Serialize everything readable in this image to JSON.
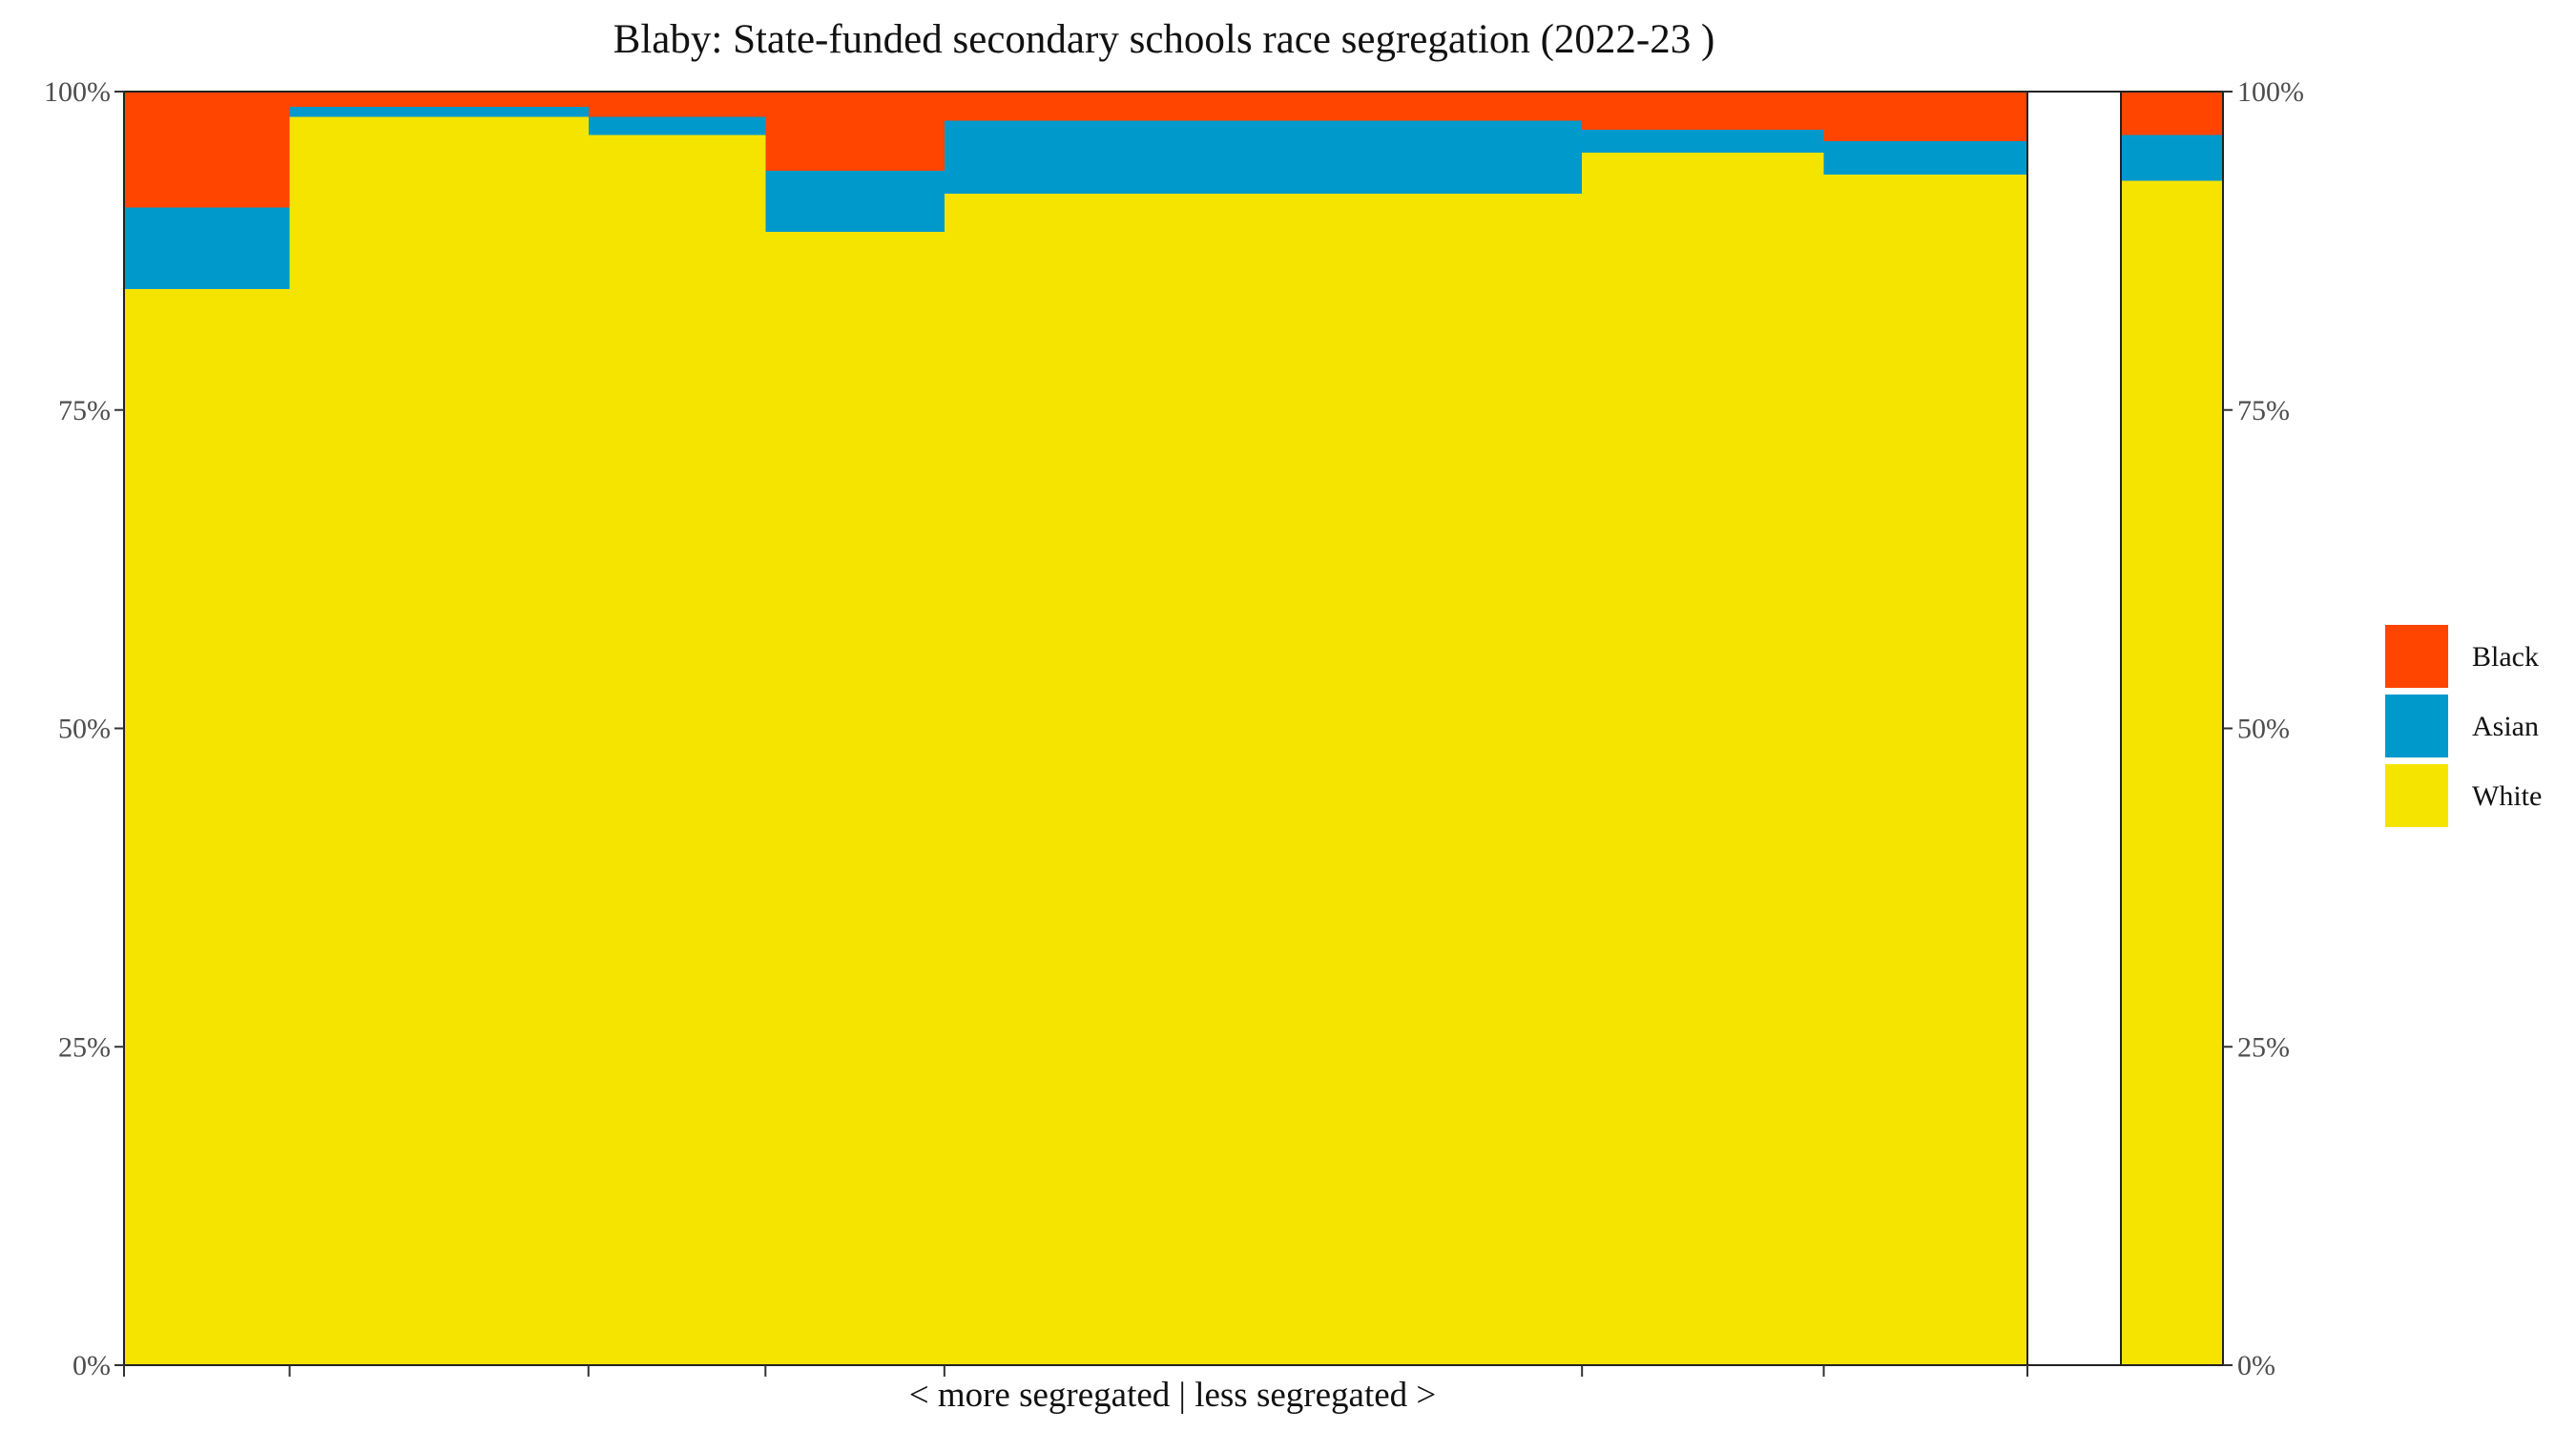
{
  "chart_data": {
    "type": "bar",
    "subtype": "stacked-variable-width",
    "title": "Blaby: State-funded secondary schools race segregation (2022-23 )",
    "xlabel": "< more segregated | less segregated >",
    "ylabel": "",
    "ylim": [
      0,
      100
    ],
    "y_ticks": [
      "0%",
      "25%",
      "50%",
      "75%",
      "100%"
    ],
    "y_tick_values": [
      0,
      25,
      50,
      75,
      100
    ],
    "secondary_y_axis": true,
    "grid": false,
    "legend_position": "right",
    "colors": {
      "Black": "#FF4500",
      "Asian": "#0099CC",
      "White": "#F5E400"
    },
    "legend": [
      "Black",
      "Asian",
      "White"
    ],
    "series_order_bottom_to_top": [
      "White",
      "Asian",
      "Black"
    ],
    "cumulative_share_domain": [
      0,
      100
    ],
    "schools": [
      {
        "cum_start": 0.0,
        "cum_end": 8.7,
        "White": 84.5,
        "Asian": 6.4,
        "Black": 9.1
      },
      {
        "cum_start": 8.7,
        "cum_end": 24.4,
        "White": 98.0,
        "Asian": 0.8,
        "Black": 1.2
      },
      {
        "cum_start": 24.4,
        "cum_end": 33.7,
        "White": 96.6,
        "Asian": 1.4,
        "Black": 2.0
      },
      {
        "cum_start": 33.7,
        "cum_end": 43.1,
        "White": 89.0,
        "Asian": 4.8,
        "Black": 6.2
      },
      {
        "cum_start": 43.1,
        "cum_end": 76.6,
        "White": 92.0,
        "Asian": 5.7,
        "Black": 2.3
      },
      {
        "cum_start": 76.6,
        "cum_end": 89.3,
        "White": 95.2,
        "Asian": 1.8,
        "Black": 3.0
      },
      {
        "cum_start": 89.3,
        "cum_end": 100.0,
        "White": 93.5,
        "Asian": 2.6,
        "Black": 3.9
      }
    ],
    "total_bar": {
      "White": 93.0,
      "Asian": 3.6,
      "Black": 3.4
    }
  }
}
